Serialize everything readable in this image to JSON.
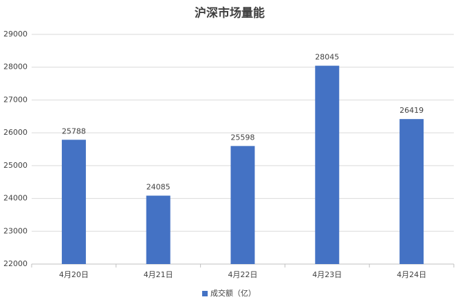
{
  "chart_data": {
    "type": "bar",
    "title": "沪深市场量能",
    "categories": [
      "4月20日",
      "4月21日",
      "4月22日",
      "4月23日",
      "4月24日"
    ],
    "series": [
      {
        "name": "成交额（亿）",
        "color": "#4472c4",
        "values": [
          25788,
          24085,
          25598,
          28045,
          26419
        ]
      }
    ],
    "ylim": [
      22000,
      29000
    ],
    "yticks": [
      22000,
      23000,
      24000,
      25000,
      26000,
      27000,
      28000,
      29000
    ],
    "grid": true,
    "legend": "bottom",
    "data_labels": true
  }
}
